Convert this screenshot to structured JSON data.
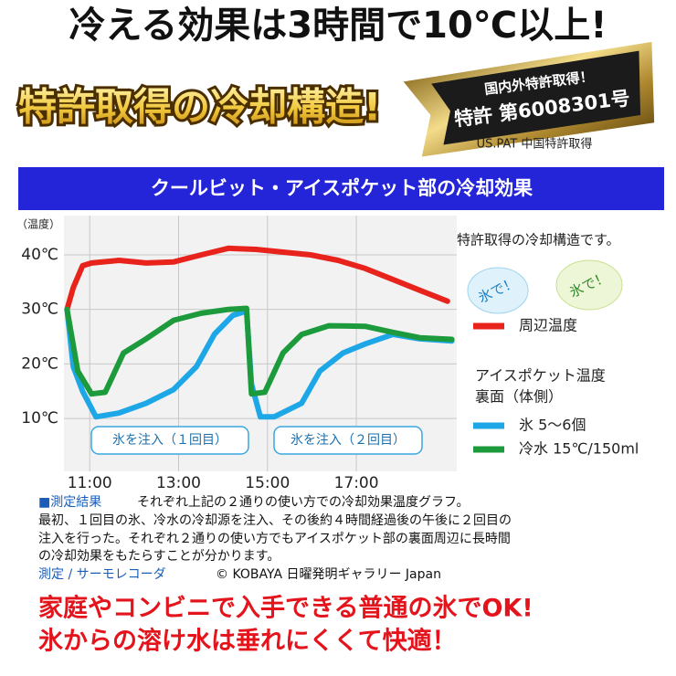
{
  "header": {
    "headline": "冷える効果は3時間で10℃以上!",
    "banner": "特許取得の冷却構造!",
    "seal_top": "国内外特許取得！",
    "seal_main": "特許 第6008301号",
    "seal_bottom": "US.PAT 中国特許取得"
  },
  "chart_data": {
    "type": "line",
    "title": "クールビット・アイスポケット部の冷却効果",
    "y_label": "（温度）",
    "xlim": [
      10.42,
      19.26
    ],
    "ylim": [
      0.3,
      47.2
    ],
    "xticks": [
      {
        "value": 11,
        "label": "11:00"
      },
      {
        "value": 13,
        "label": "13:00"
      },
      {
        "value": 15,
        "label": "15:00"
      },
      {
        "value": 17,
        "label": "17:00"
      }
    ],
    "yticks": [
      {
        "value": 10,
        "label": "10℃"
      },
      {
        "value": 20,
        "label": "20℃"
      },
      {
        "value": 30,
        "label": "30℃"
      },
      {
        "value": 40,
        "label": "40℃"
      }
    ],
    "grid": true,
    "note": "特許取得の冷却構造です。",
    "badges": [
      "氷で！",
      "氷で！"
    ],
    "legend_group": [
      "アイスポケット温度",
      "裏面（体側）"
    ],
    "annotations": [
      "氷を注入（１回目）",
      "氷を注入（２回目）"
    ],
    "series": [
      {
        "name": "周辺温度",
        "color": "#e8231b",
        "x": [
          10.49,
          10.63,
          10.84,
          11.04,
          11.66,
          12.27,
          12.89,
          13.51,
          14.12,
          14.74,
          15.35,
          15.97,
          16.59,
          17.2,
          17.82,
          18.43,
          19.05
        ],
        "values": [
          30,
          34,
          38,
          38.5,
          39,
          38.5,
          38.7,
          40,
          41.2,
          41,
          40.5,
          40,
          39,
          37.5,
          35.5,
          33.5,
          31.5
        ]
      },
      {
        "name": "氷 5～6個",
        "color": "#1ea7e6",
        "x": [
          10.49,
          10.63,
          10.84,
          11.14,
          11.66,
          12.27,
          12.89,
          13.4,
          13.81,
          14.22,
          14.53,
          14.64,
          14.84,
          15.15,
          15.77,
          16.18,
          16.7,
          17.21,
          17.82,
          18.43,
          19.15
        ],
        "values": [
          30,
          19.5,
          15,
          10.3,
          11,
          12.8,
          15.3,
          19.5,
          25.5,
          28.9,
          29.7,
          16.3,
          10.3,
          10.3,
          12.8,
          18.7,
          22,
          23.7,
          25.4,
          24.6,
          24.2
        ]
      },
      {
        "name": "冷水 15℃/150ml",
        "color": "#1c9a3c",
        "x": [
          10.49,
          10.73,
          11.04,
          11.35,
          11.76,
          12.27,
          12.89,
          13.51,
          14.12,
          14.53,
          14.64,
          14.94,
          15.35,
          15.77,
          16.38,
          17.2,
          17.82,
          18.43,
          19.15
        ],
        "values": [
          30,
          18.7,
          14.5,
          14.8,
          22,
          24.6,
          28,
          29.3,
          30,
          30.2,
          14.5,
          14.8,
          22,
          25.4,
          27,
          26.9,
          25.8,
          24.8,
          24.5
        ]
      }
    ]
  },
  "description": {
    "heading": "■測定結果",
    "lines": [
      "それぞれ上記の２通りの使い方での冷却効果温度グラフ。",
      "最初、１回目の氷、冷水の冷却源を注入、その後約４時間経過後の午後に２回目の",
      "注入を行った。それぞれ２通りの使い方でもアイスポケット部の裏面周辺に長時間",
      "の冷却効果をもたらすことが分かります。"
    ],
    "measure": "測定 / サーモレコーダ",
    "credit": "© KOBAYA 日曜発明ギャラリー Japan"
  },
  "footer": {
    "lines": [
      "家庭やコンビニで入手できる普通の氷でOK!",
      "氷からの溶け水は垂れにくくて快適！"
    ]
  }
}
